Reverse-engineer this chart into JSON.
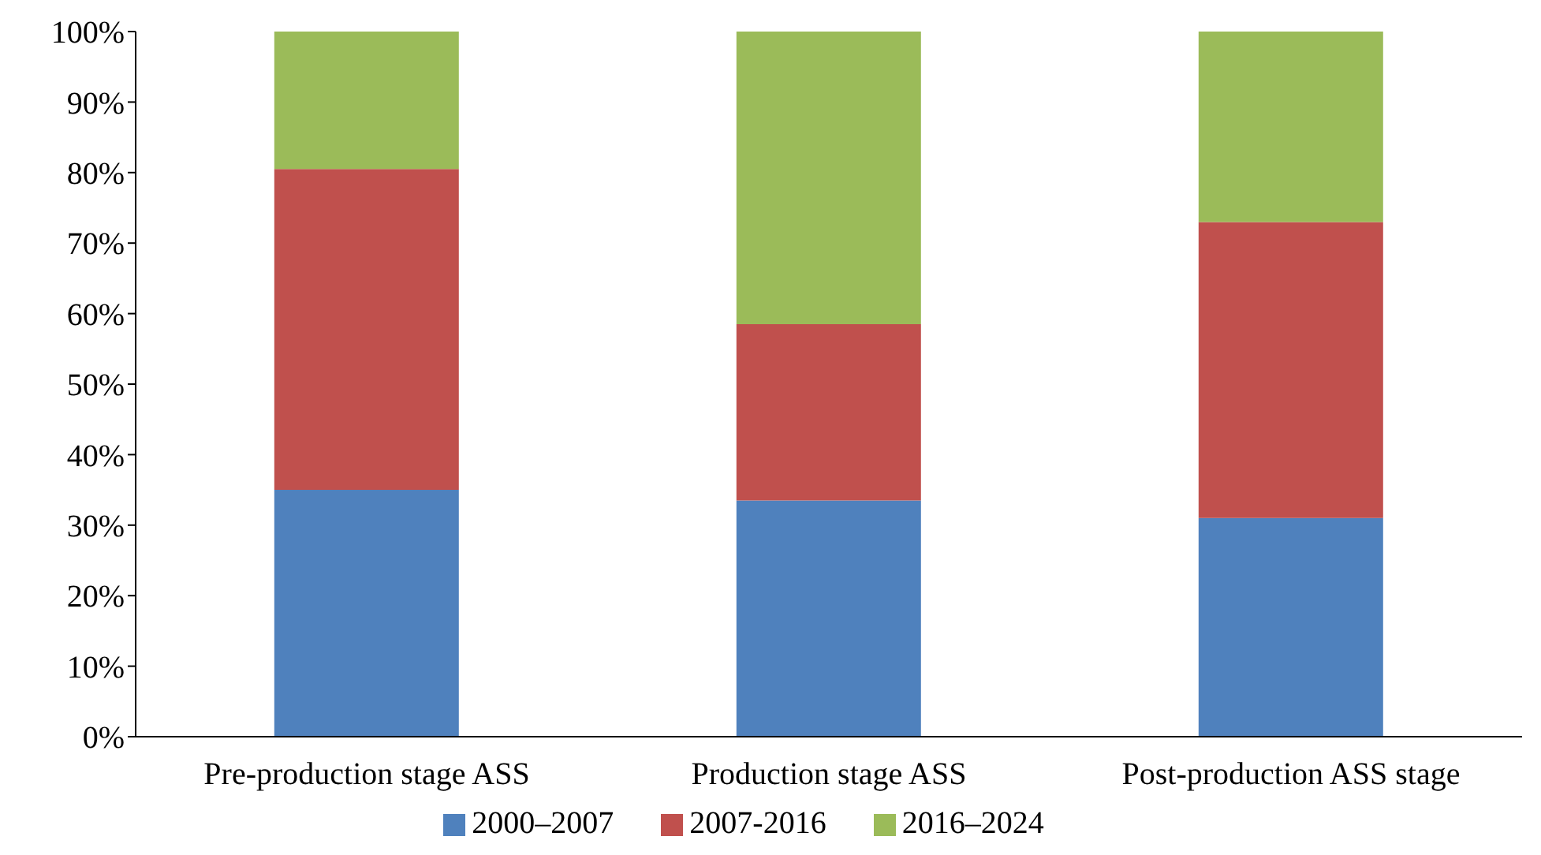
{
  "chart_data": {
    "type": "bar",
    "stacked": true,
    "categories": [
      "Pre-production stage ASS",
      "Production stage ASS",
      "Post-production ASS stage"
    ],
    "series": [
      {
        "name": "2000–2007",
        "color": "#4f81bd",
        "values": [
          35,
          33.5,
          31
        ]
      },
      {
        "name": "2007-2016",
        "color": "#c0504d",
        "values": [
          45.5,
          25,
          42
        ]
      },
      {
        "name": "2016–2024",
        "color": "#9bbb59",
        "values": [
          19.5,
          41.5,
          27
        ]
      }
    ],
    "ylim": [
      0,
      100
    ],
    "yticks": [
      {
        "value": 0,
        "label": "0%"
      },
      {
        "value": 10,
        "label": "10%"
      },
      {
        "value": 20,
        "label": "20%"
      },
      {
        "value": 30,
        "label": "30%"
      },
      {
        "value": 40,
        "label": "40%"
      },
      {
        "value": 50,
        "label": "50%"
      },
      {
        "value": 60,
        "label": "60%"
      },
      {
        "value": 70,
        "label": "70%"
      },
      {
        "value": 80,
        "label": "80%"
      },
      {
        "value": 90,
        "label": "90%"
      },
      {
        "value": 100,
        "label": "100%"
      }
    ],
    "grid": false,
    "legend": "bottom"
  }
}
